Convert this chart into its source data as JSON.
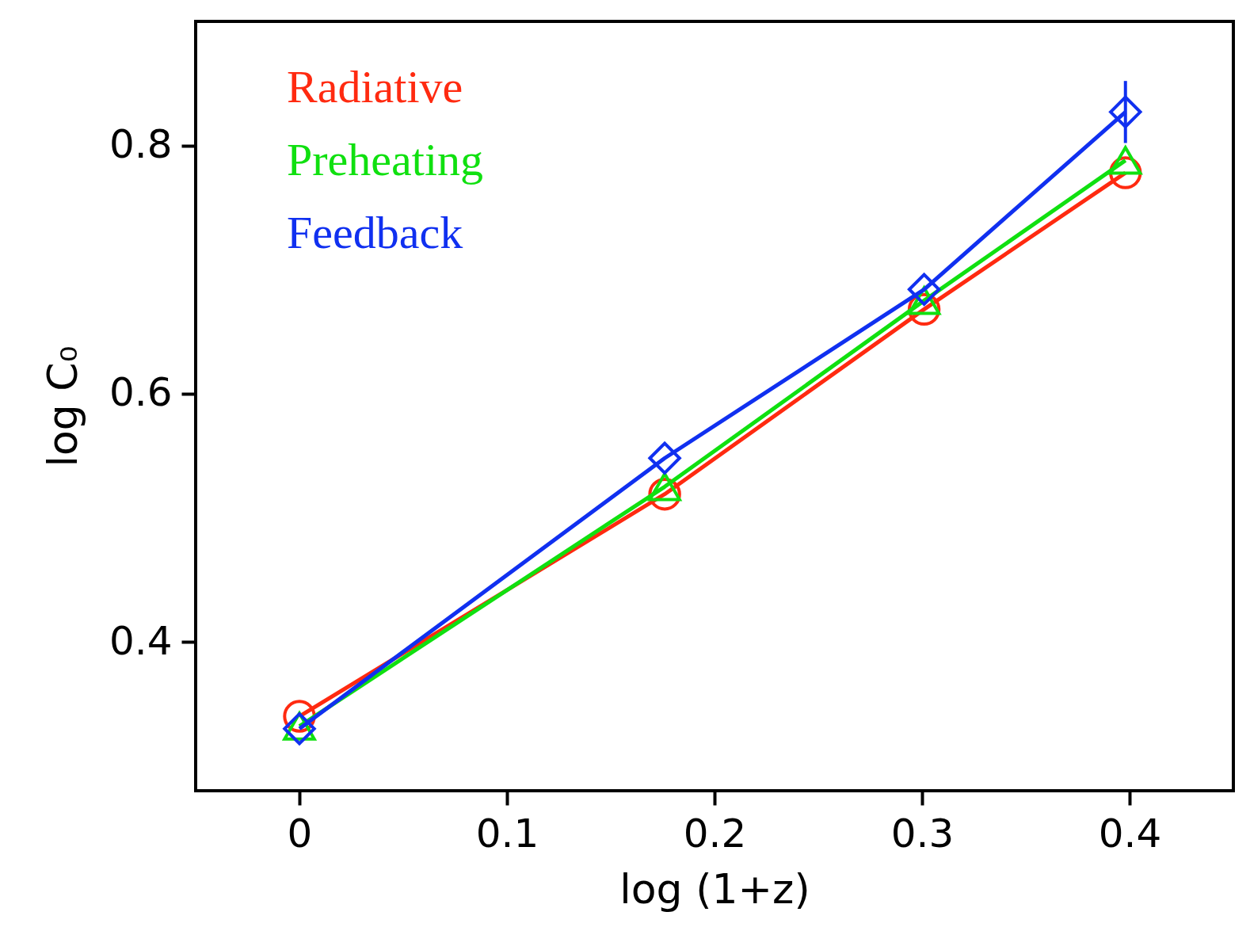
{
  "chart_data": {
    "type": "line",
    "xlabel": "log (1+z)",
    "ylabel": "log C₀",
    "xlim": [
      -0.05,
      0.45
    ],
    "ylim": [
      0.28,
      0.9
    ],
    "xticks": [
      0,
      0.1,
      0.2,
      0.3,
      0.4
    ],
    "yticks": [
      0.4,
      0.6,
      0.8
    ],
    "x": [
      0,
      0.176,
      0.301,
      0.398
    ],
    "legend": "top left",
    "grid": false,
    "line_style": "solid",
    "series": [
      {
        "name": "Radiative",
        "color": "#ff2a10",
        "marker": "circle",
        "values": [
          0.34,
          0.519,
          0.668,
          0.778
        ]
      },
      {
        "name": "Preheating",
        "color": "#10e010",
        "marker": "triangle",
        "values": [
          0.332,
          0.525,
          0.675,
          0.788
        ]
      },
      {
        "name": "Feedback",
        "color": "#1030f0",
        "marker": "diamond",
        "values": [
          0.33,
          0.548,
          0.684,
          0.827
        ],
        "errors": [
          null,
          null,
          null,
          0.025
        ]
      }
    ]
  }
}
